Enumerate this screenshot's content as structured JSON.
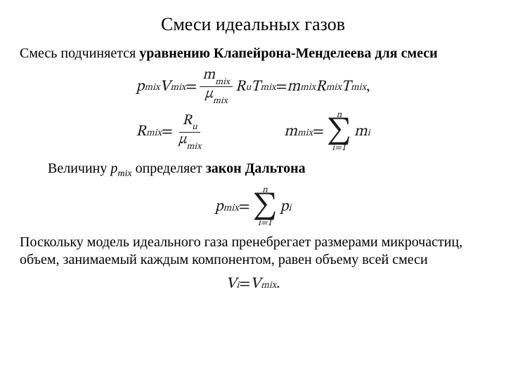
{
  "title": "Смеси идеальных газов",
  "para1": {
    "pre": "Смесь подчиняется ",
    "bold": "уравнению Клапейрона-Менделеева для смеси"
  },
  "eq1": {
    "lhs_p": "p",
    "lhs_p_sub": "mix",
    "lhs_V": "V",
    "lhs_V_sub": "mix",
    "eq": " = ",
    "frac_num_m": "m",
    "frac_num_m_sub": "mix",
    "frac_den_mu": "μ",
    "frac_den_mu_sub": "mix",
    "R": "R",
    "R_sub": "u",
    "T": "T",
    "T_sub": "mix",
    "eq2": " = ",
    "m2": "m",
    "m2_sub": "mix",
    "R2": "R",
    "R2_sub": "mix",
    "T2": "T",
    "T2_sub": "mix",
    "comma": ","
  },
  "eq2a": {
    "R": "R",
    "R_sub": "mix",
    "eq": " = ",
    "num_R": "R",
    "num_R_sub": "u",
    "den_mu": "μ",
    "den_mu_sub": "mix"
  },
  "eq2b": {
    "m": "m",
    "m_sub": "mix",
    "eq": " = ",
    "sum_top": "n",
    "sum_sig": "∑",
    "sum_bot": "i=1",
    "mi": "m",
    "mi_sub": "i"
  },
  "para2": {
    "pre": "Величину ",
    "var": "p",
    "var_sub": "mix",
    "mid": " определяет ",
    "bold": "закон Дальтона"
  },
  "eq3": {
    "p": "p",
    "p_sub": "mix",
    "eq": " = ",
    "sum_top": "n",
    "sum_sig": "∑",
    "sum_bot": "i=1",
    "pi": "p",
    "pi_sub": "i"
  },
  "para3": "Поскольку модель идеального газа пренебрегает размерами микрочастиц, объем, занимаемый каждым компонентом, равен объему всей смеси",
  "eq4": {
    "Vi": "V",
    "Vi_sub": "i",
    "eq": " = ",
    "Vm": "V",
    "Vm_sub": "mix",
    "dot": "."
  },
  "style": {
    "bg": "#ffffff",
    "text_color": "#000000",
    "math_color": "#1a1a1a",
    "title_fontsize": 26,
    "body_fontsize": 20,
    "math_fontsize": 22,
    "font_family": "Times New Roman"
  }
}
